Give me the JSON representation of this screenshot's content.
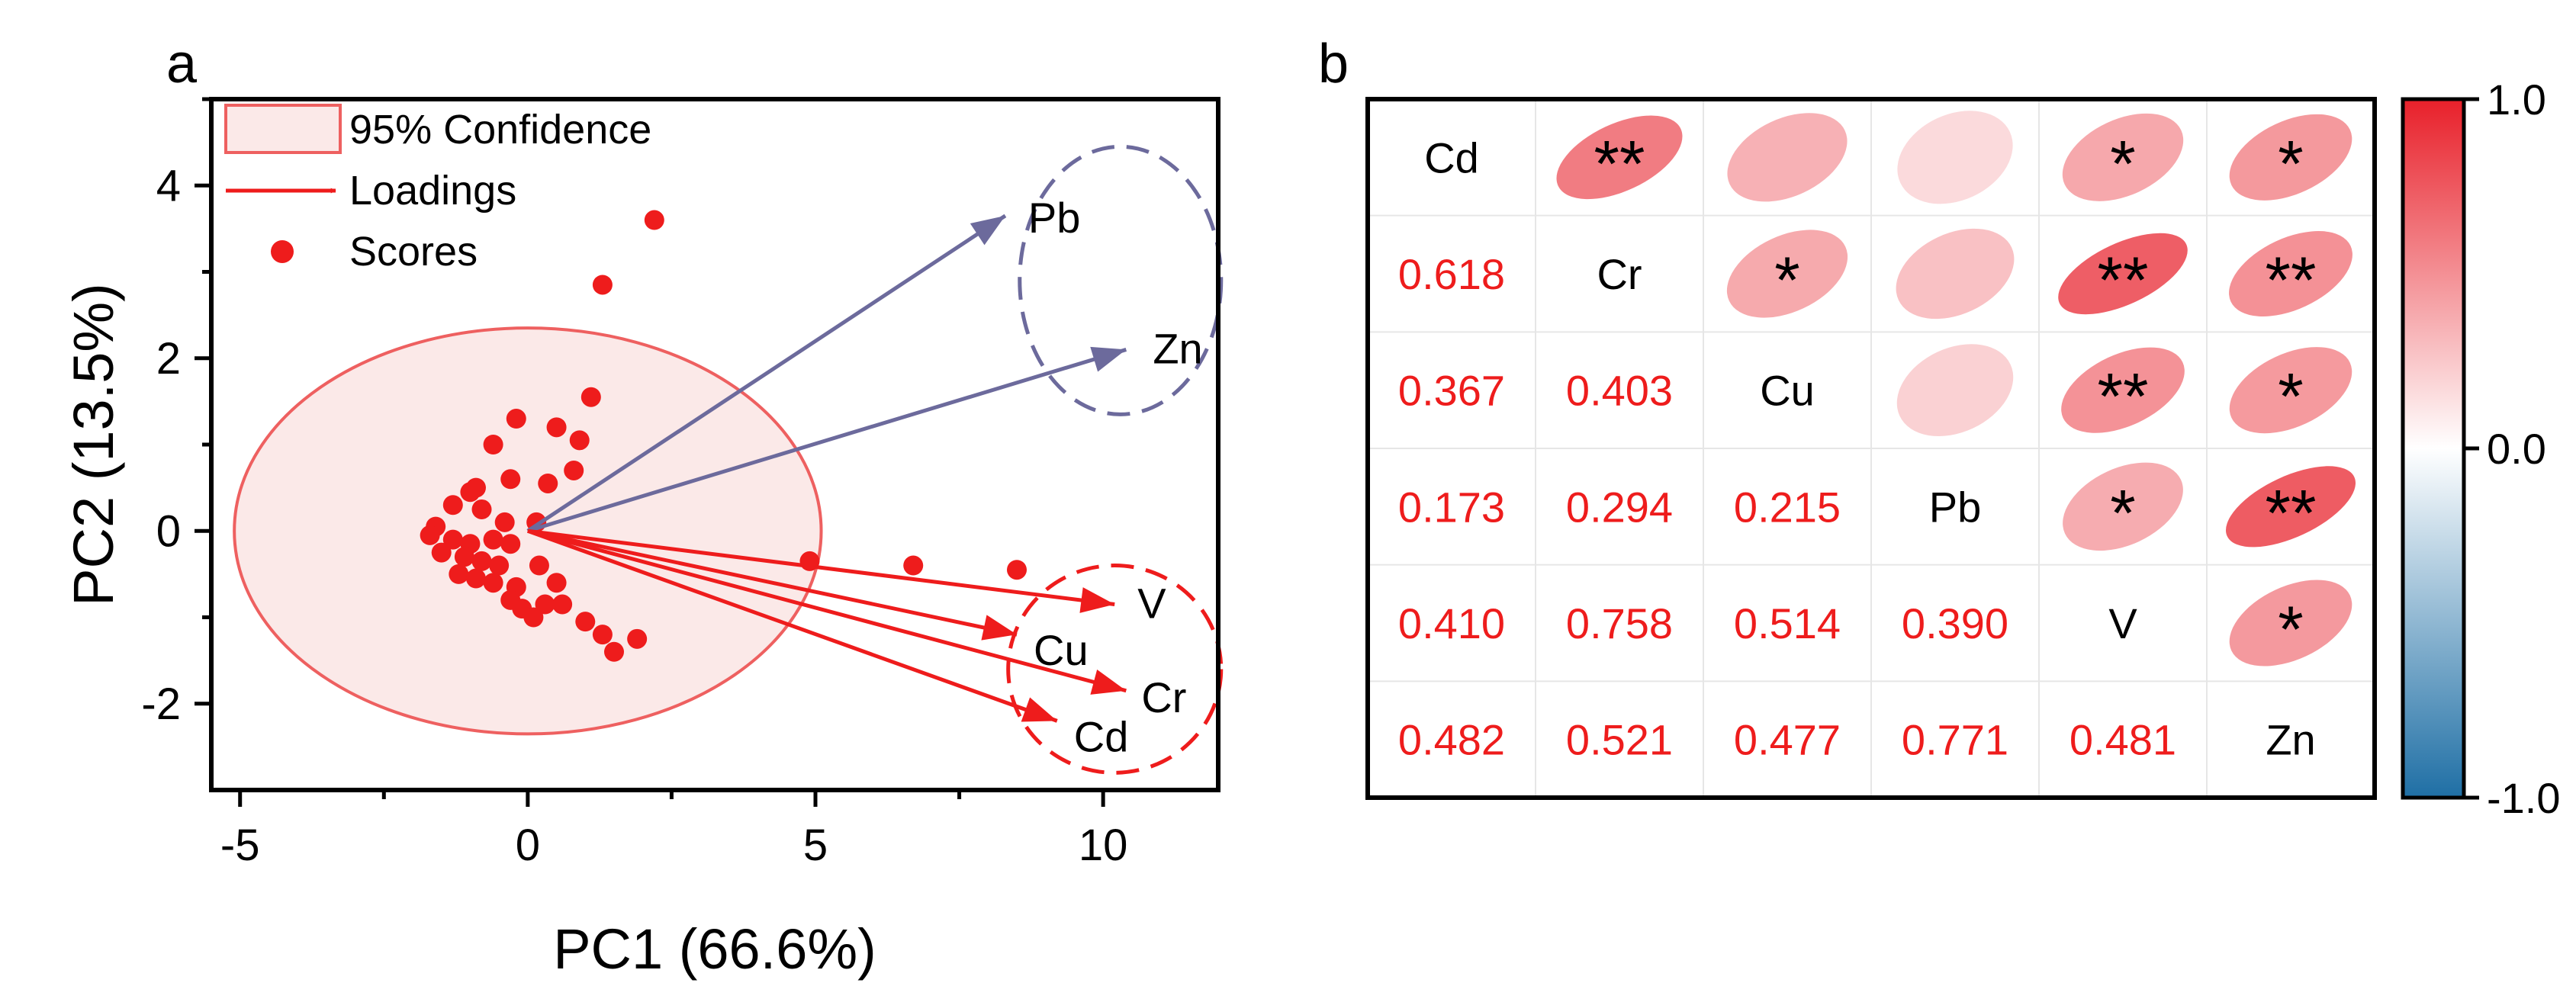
{
  "panel_a": {
    "label": "a",
    "legend": {
      "confidence": "95% Confidence",
      "loadings": "Loadings",
      "scores": "Scores"
    }
  },
  "panel_b": {
    "label": "b"
  },
  "colors": {
    "red": "#ee1c1c",
    "blue": "#6c6a9c",
    "ellipse_fill": "#fbe9e8",
    "ellipse_stroke": "#ee6060"
  },
  "chart_data": [
    {
      "type": "scatter",
      "title": "",
      "xlabel": "PC1 (66.6%)",
      "ylabel": "PC2 (13.5%)",
      "xlim": [
        -5.5,
        12
      ],
      "ylim": [
        -3,
        5
      ],
      "xticks": [
        -5,
        0,
        5,
        10
      ],
      "yticks": [
        -2,
        0,
        2,
        4
      ],
      "confidence_ellipse": {
        "center": [
          0,
          0
        ],
        "semi_x": 5.1,
        "semi_y": 2.35
      },
      "scores": [
        [
          2.2,
          3.6
        ],
        [
          1.3,
          2.85
        ],
        [
          1.1,
          1.55
        ],
        [
          -0.2,
          1.3
        ],
        [
          0.5,
          1.2
        ],
        [
          0.9,
          1.05
        ],
        [
          -0.6,
          1.0
        ],
        [
          0.8,
          0.7
        ],
        [
          -0.3,
          0.6
        ],
        [
          0.35,
          0.55
        ],
        [
          -0.9,
          0.5
        ],
        [
          -1.0,
          0.45
        ],
        [
          -1.3,
          0.3
        ],
        [
          -0.8,
          0.25
        ],
        [
          -0.4,
          0.1
        ],
        [
          0.15,
          0.1
        ],
        [
          -1.6,
          0.05
        ],
        [
          -1.7,
          -0.05
        ],
        [
          -1.3,
          -0.1
        ],
        [
          -1.0,
          -0.15
        ],
        [
          -0.6,
          -0.1
        ],
        [
          -0.3,
          -0.15
        ],
        [
          -1.5,
          -0.25
        ],
        [
          -1.1,
          -0.3
        ],
        [
          -0.8,
          -0.35
        ],
        [
          -0.5,
          -0.4
        ],
        [
          0.2,
          -0.4
        ],
        [
          -1.2,
          -0.5
        ],
        [
          -0.9,
          -0.55
        ],
        [
          -0.6,
          -0.6
        ],
        [
          -0.2,
          -0.65
        ],
        [
          0.5,
          -0.6
        ],
        [
          -0.3,
          -0.8
        ],
        [
          -0.1,
          -0.9
        ],
        [
          0.3,
          -0.85
        ],
        [
          0.1,
          -1.0
        ],
        [
          0.6,
          -0.85
        ],
        [
          1.0,
          -1.05
        ],
        [
          1.3,
          -1.2
        ],
        [
          1.5,
          -1.4
        ],
        [
          1.9,
          -1.25
        ],
        [
          4.9,
          -0.35
        ],
        [
          6.7,
          -0.4
        ],
        [
          8.5,
          -0.45
        ]
      ],
      "loadings": [
        {
          "name": "Pb",
          "x": 8.3,
          "y": 3.65,
          "color": "#6c6a9c"
        },
        {
          "name": "Zn",
          "x": 10.4,
          "y": 2.1,
          "color": "#6c6a9c"
        },
        {
          "name": "V",
          "x": 10.2,
          "y": -0.85,
          "color": "#ee1c1c"
        },
        {
          "name": "Cu",
          "x": 8.5,
          "y": -1.2,
          "color": "#ee1c1c"
        },
        {
          "name": "Cr",
          "x": 10.4,
          "y": -1.85,
          "color": "#ee1c1c"
        },
        {
          "name": "Cd",
          "x": 9.2,
          "y": -2.2,
          "color": "#ee1c1c"
        }
      ],
      "cluster_ellipses": [
        {
          "group": "blue",
          "members": [
            "Pb",
            "Zn"
          ],
          "center": [
            10.3,
            2.9
          ],
          "semi_x": 1.75,
          "semi_y": 1.55
        },
        {
          "group": "red",
          "members": [
            "V",
            "Cu",
            "Cr",
            "Cd"
          ],
          "center": [
            10.2,
            -1.6
          ],
          "semi_x": 1.85,
          "semi_y": 1.2
        }
      ]
    },
    {
      "type": "heatmap",
      "variables": [
        "Cd",
        "Cr",
        "Cu",
        "Pb",
        "V",
        "Zn"
      ],
      "lower_values": [
        {
          "row": "Cr",
          "col": "Cd",
          "value": "0.618"
        },
        {
          "row": "Cu",
          "col": "Cd",
          "value": "0.367"
        },
        {
          "row": "Cu",
          "col": "Cr",
          "value": "0.403"
        },
        {
          "row": "Pb",
          "col": "Cd",
          "value": "0.173"
        },
        {
          "row": "Pb",
          "col": "Cr",
          "value": "0.294"
        },
        {
          "row": "Pb",
          "col": "Cu",
          "value": "0.215"
        },
        {
          "row": "V",
          "col": "Cd",
          "value": "0.410"
        },
        {
          "row": "V",
          "col": "Cr",
          "value": "0.758"
        },
        {
          "row": "V",
          "col": "Cu",
          "value": "0.514"
        },
        {
          "row": "V",
          "col": "Pb",
          "value": "0.390"
        },
        {
          "row": "Zn",
          "col": "Cd",
          "value": "0.482"
        },
        {
          "row": "Zn",
          "col": "Cr",
          "value": "0.521"
        },
        {
          "row": "Zn",
          "col": "Cu",
          "value": "0.477"
        },
        {
          "row": "Zn",
          "col": "Pb",
          "value": "0.771"
        },
        {
          "row": "Zn",
          "col": "V",
          "value": "0.481"
        }
      ],
      "significance": [
        {
          "row": "Cd",
          "col": "Cr",
          "mark": "**"
        },
        {
          "row": "Cd",
          "col": "Cu",
          "mark": ""
        },
        {
          "row": "Cd",
          "col": "Pb",
          "mark": ""
        },
        {
          "row": "Cd",
          "col": "V",
          "mark": "*"
        },
        {
          "row": "Cd",
          "col": "Zn",
          "mark": "*"
        },
        {
          "row": "Cr",
          "col": "Cu",
          "mark": "*"
        },
        {
          "row": "Cr",
          "col": "Pb",
          "mark": ""
        },
        {
          "row": "Cr",
          "col": "V",
          "mark": "**"
        },
        {
          "row": "Cr",
          "col": "Zn",
          "mark": "**"
        },
        {
          "row": "Cu",
          "col": "Pb",
          "mark": ""
        },
        {
          "row": "Cu",
          "col": "V",
          "mark": "**"
        },
        {
          "row": "Cu",
          "col": "Zn",
          "mark": "*"
        },
        {
          "row": "Pb",
          "col": "V",
          "mark": "*"
        },
        {
          "row": "Pb",
          "col": "Zn",
          "mark": "**"
        },
        {
          "row": "V",
          "col": "Zn",
          "mark": "*"
        }
      ],
      "colorbar": {
        "range": [
          -1.0,
          1.0
        ],
        "ticks": [
          "1.0",
          "0.0",
          "-1.0"
        ],
        "colors": {
          "high": "#e8202a",
          "mid": "#ffffff",
          "low": "#1f6fa5"
        }
      }
    }
  ]
}
